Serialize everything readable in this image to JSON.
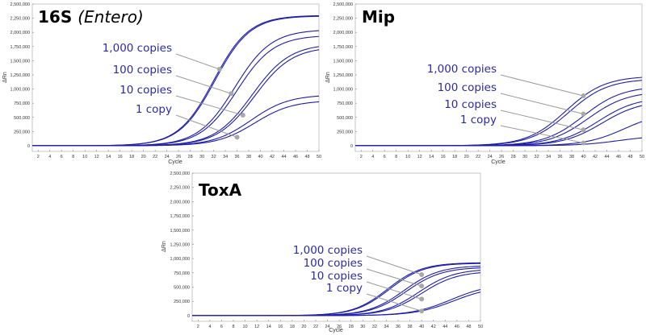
{
  "chart_data": [
    {
      "id": "16s",
      "type": "line",
      "title": "16S",
      "subtitle": "(Entero)",
      "xlabel": "Cycle",
      "ylabel": "ΔRn",
      "xlim": [
        1,
        50
      ],
      "ylim": [
        -100000,
        2500000
      ],
      "xticks": [
        2,
        4,
        6,
        8,
        10,
        12,
        14,
        16,
        18,
        20,
        22,
        24,
        26,
        28,
        30,
        32,
        34,
        36,
        38,
        40,
        42,
        44,
        46,
        48,
        50
      ],
      "yticks": [
        0,
        250000,
        500000,
        750000,
        1000000,
        1250000,
        1500000,
        1750000,
        2000000,
        2250000,
        2500000
      ],
      "ytick_labels": [
        "0",
        "250,000",
        "500,000",
        "750,000",
        "1,000,000",
        "1,250,000",
        "1,500,000",
        "1,750,000",
        "2,000,000",
        "2,250,000",
        "2,500,000"
      ],
      "series": [
        {
          "name": "1,000 copies",
          "replicates": [
            {
              "mid": 32.0,
              "k": 0.33,
              "plateau": 2300000
            },
            {
              "mid": 32.2,
              "k": 0.33,
              "plateau": 2290000
            }
          ]
        },
        {
          "name": "100 copies",
          "replicates": [
            {
              "mid": 35.6,
              "k": 0.32,
              "plateau": 2050000
            },
            {
              "mid": 36.0,
              "k": 0.32,
              "plateau": 1950000
            }
          ]
        },
        {
          "name": "10 copies",
          "replicates": [
            {
              "mid": 38.6,
              "k": 0.31,
              "plateau": 1800000
            },
            {
              "mid": 39.0,
              "k": 0.31,
              "plateau": 1750000
            }
          ]
        },
        {
          "name": "1 copy",
          "replicates": [
            {
              "mid": 38.4,
              "k": 0.31,
              "plateau": 900000
            },
            {
              "mid": 39.0,
              "k": 0.31,
              "plateau": 800000
            }
          ]
        }
      ],
      "annotations": [
        {
          "label": "1,000 copies",
          "cycle": 33,
          "value": 1350000
        },
        {
          "label": "100 copies",
          "cycle": 35,
          "value": 920000
        },
        {
          "label": "10 copies",
          "cycle": 37,
          "value": 540000
        },
        {
          "label": "1 copy",
          "cycle": 36,
          "value": 150000
        }
      ]
    },
    {
      "id": "mip",
      "type": "line",
      "title": "Mip",
      "subtitle": "",
      "xlabel": "Cycle",
      "ylabel": "ΔRn",
      "xlim": [
        1,
        50
      ],
      "ylim": [
        -100000,
        2500000
      ],
      "xticks": [
        2,
        4,
        6,
        8,
        10,
        12,
        14,
        16,
        18,
        20,
        22,
        24,
        26,
        28,
        30,
        32,
        34,
        36,
        38,
        40,
        42,
        44,
        46,
        48,
        50
      ],
      "yticks": [
        0,
        250000,
        500000,
        750000,
        1000000,
        1250000,
        1500000,
        1750000,
        2000000,
        2250000,
        2500000
      ],
      "ytick_labels": [
        "0",
        "250,000",
        "500,000",
        "750,000",
        "1,000,000",
        "1,250,000",
        "1,500,000",
        "1,750,000",
        "2,000,000",
        "2,250,000",
        "2,500,000"
      ],
      "series": [
        {
          "name": "1,000 copies",
          "replicates": [
            {
              "mid": 37.0,
              "k": 0.3,
              "plateau": 1230000
            },
            {
              "mid": 37.5,
              "k": 0.3,
              "plateau": 1180000
            }
          ]
        },
        {
          "name": "100 copies",
          "replicates": [
            {
              "mid": 40.0,
              "k": 0.3,
              "plateau": 1050000
            },
            {
              "mid": 40.8,
              "k": 0.3,
              "plateau": 960000
            }
          ]
        },
        {
          "name": "10 copies",
          "replicates": [
            {
              "mid": 42.5,
              "k": 0.3,
              "plateau": 860000
            },
            {
              "mid": 43.2,
              "k": 0.3,
              "plateau": 800000
            }
          ]
        },
        {
          "name": "1 copy",
          "replicates": [
            {
              "mid": 47.0,
              "k": 0.3,
              "plateau": 600000
            },
            {
              "mid": 46.0,
              "k": 0.3,
              "plateau": 180000
            }
          ]
        }
      ],
      "annotations": [
        {
          "label": "1,000 copies",
          "cycle": 40,
          "value": 880000
        },
        {
          "label": "100 copies",
          "cycle": 40,
          "value": 560000
        },
        {
          "label": "10 copies",
          "cycle": 40,
          "value": 280000
        },
        {
          "label": "1 copy",
          "cycle": 40,
          "value": 50000
        }
      ]
    },
    {
      "id": "toxa",
      "type": "line",
      "title": "ToxA",
      "subtitle": "",
      "xlabel": "Cycle",
      "ylabel": "ΔRn",
      "xlim": [
        1,
        50
      ],
      "ylim": [
        -100000,
        2500000
      ],
      "xticks": [
        2,
        4,
        6,
        8,
        10,
        12,
        14,
        16,
        18,
        20,
        22,
        24,
        26,
        28,
        30,
        32,
        34,
        36,
        38,
        40,
        42,
        44,
        46,
        48,
        50
      ],
      "yticks": [
        0,
        250000,
        500000,
        750000,
        1000000,
        1250000,
        1500000,
        1750000,
        2000000,
        2250000,
        2500000
      ],
      "ytick_labels": [
        "0",
        "250,000",
        "500,000",
        "750,000",
        "1,000,000",
        "1,250,000",
        "1,500,000",
        "1,750,000",
        "2,000,000",
        "2,250,000",
        "2,500,000"
      ],
      "series": [
        {
          "name": "1,000 copies",
          "replicates": [
            {
              "mid": 34.2,
              "k": 0.34,
              "plateau": 930000
            },
            {
              "mid": 34.5,
              "k": 0.34,
              "plateau": 920000
            }
          ]
        },
        {
          "name": "100 copies",
          "replicates": [
            {
              "mid": 37.0,
              "k": 0.33,
              "plateau": 880000
            },
            {
              "mid": 37.4,
              "k": 0.33,
              "plateau": 850000
            }
          ]
        },
        {
          "name": "10 copies",
          "replicates": [
            {
              "mid": 39.5,
              "k": 0.33,
              "plateau": 820000
            },
            {
              "mid": 40.0,
              "k": 0.33,
              "plateau": 780000
            }
          ]
        },
        {
          "name": "1 copy",
          "replicates": [
            {
              "mid": 45.0,
              "k": 0.3,
              "plateau": 560000
            },
            {
              "mid": 45.5,
              "k": 0.3,
              "plateau": 520000
            }
          ]
        }
      ],
      "annotations": [
        {
          "label": "1,000 copies",
          "cycle": 40,
          "value": 720000
        },
        {
          "label": "100 copies",
          "cycle": 40,
          "value": 520000
        },
        {
          "label": "10 copies",
          "cycle": 40,
          "value": 290000
        },
        {
          "label": "1 copy",
          "cycle": 40,
          "value": 80000
        }
      ]
    }
  ]
}
